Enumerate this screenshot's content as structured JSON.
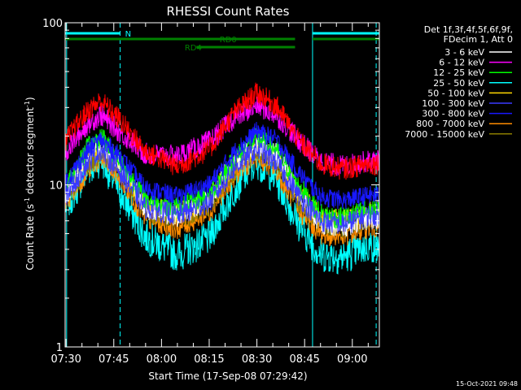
{
  "chart_data": {
    "type": "line",
    "title": "RHESSI Count Rates",
    "xlabel": "Start Time (17-Sep-08 07:29:42)",
    "ylabel": "Count Rate (s",
    "ylabel_sup1": "-1",
    "ylabel_mid": " detector segment",
    "ylabel_sup2": "-1",
    "ylabel_end": ")",
    "yscale": "log",
    "ylim": [
      1,
      100
    ],
    "xlim": [
      "07:29:42",
      "09:08:30"
    ],
    "x_ticks": [
      "07:30",
      "07:45",
      "08:00",
      "08:15",
      "08:30",
      "08:45",
      "09:00"
    ],
    "y_ticks": [
      "1",
      "10",
      "100"
    ],
    "grid": false,
    "legend_position": "right",
    "legend_header": [
      "Det 1f,3f,4f,5f,6f,9f,",
      "FDecim 1, Att 0"
    ],
    "timestamp": "15-Oct-2021 09:48",
    "series": [
      {
        "name": "3 - 6 keV",
        "color": "#ffffff",
        "x": [
          "07:30",
          "07:37",
          "07:41",
          "07:47",
          "07:55",
          "08:05",
          "08:15",
          "08:23",
          "08:30",
          "08:36",
          "08:43",
          "08:50",
          "08:57",
          "09:05"
        ],
        "values": [
          8.5,
          15.5,
          18.5,
          13.5,
          7.2,
          6.4,
          8.2,
          14.0,
          18.0,
          15.5,
          9.0,
          5.8,
          5.5,
          6.2
        ]
      },
      {
        "name": "6 - 12 keV",
        "color": "#ff00ff",
        "x": [
          "07:30",
          "07:37",
          "07:41",
          "07:47",
          "07:55",
          "08:05",
          "08:15",
          "08:23",
          "08:30",
          "08:36",
          "08:43",
          "08:50",
          "08:57",
          "09:05"
        ],
        "values": [
          16,
          24,
          27,
          21,
          15.5,
          15,
          18.5,
          26,
          31,
          27,
          19,
          14,
          13,
          14
        ]
      },
      {
        "name": "12 - 25 keV",
        "color": "#00ff00",
        "x": [
          "07:30",
          "07:37",
          "07:41",
          "07:47",
          "07:55",
          "08:05",
          "08:15",
          "08:23",
          "08:30",
          "08:36",
          "08:43",
          "08:50",
          "08:57",
          "09:05"
        ],
        "values": [
          10,
          17,
          20,
          14,
          8.2,
          7.2,
          8.8,
          14.5,
          19.5,
          16.5,
          10,
          6.6,
          6.2,
          7.0
        ]
      },
      {
        "name": "25 - 50 keV",
        "color": "#00ffff",
        "x": [
          "07:30",
          "07:37",
          "07:41",
          "07:47",
          "07:55",
          "08:05",
          "08:15",
          "08:23",
          "08:30",
          "08:36",
          "08:43",
          "08:50",
          "08:57",
          "09:05"
        ],
        "values": [
          7.5,
          12.5,
          14.5,
          9.0,
          4.8,
          3.7,
          4.7,
          9.5,
          14.0,
          11.0,
          5.8,
          3.7,
          3.6,
          4.2
        ]
      },
      {
        "name": "50 - 100 keV",
        "color": "#ffd700",
        "x": [
          "07:30",
          "07:37",
          "07:41",
          "07:47",
          "07:55",
          "08:05",
          "08:15",
          "08:23",
          "08:30",
          "08:36",
          "08:43",
          "08:50",
          "08:57",
          "09:05"
        ],
        "values": [
          9,
          15,
          17.5,
          13,
          7.5,
          6.8,
          8.2,
          13.5,
          17.5,
          15,
          9.2,
          6.3,
          6.0,
          6.8
        ]
      },
      {
        "name": "100 - 300 keV",
        "color": "#3a3aff",
        "x": [
          "07:30",
          "07:37",
          "07:41",
          "07:47",
          "07:55",
          "08:05",
          "08:15",
          "08:23",
          "08:30",
          "08:36",
          "08:43",
          "08:50",
          "08:57",
          "09:05"
        ],
        "values": [
          8.6,
          14,
          16.5,
          12,
          7.2,
          6.5,
          7.8,
          12.8,
          16.5,
          14,
          8.6,
          6.0,
          5.7,
          6.5
        ]
      },
      {
        "name": "300 - 800 keV",
        "color": "#1818ff",
        "x": [
          "07:30",
          "07:37",
          "07:41",
          "07:47",
          "07:55",
          "08:05",
          "08:15",
          "08:23",
          "08:30",
          "08:36",
          "08:43",
          "08:50",
          "08:57",
          "09:05"
        ],
        "values": [
          10.5,
          16.5,
          19,
          15,
          9.5,
          8.5,
          10,
          16,
          21.5,
          19,
          12,
          8.5,
          8.0,
          8.6
        ]
      },
      {
        "name": "800 - 7000 keV",
        "color": "#ff8c00",
        "x": [
          "07:30",
          "07:37",
          "07:41",
          "07:47",
          "07:55",
          "08:05",
          "08:15",
          "08:23",
          "08:30",
          "08:36",
          "08:43",
          "08:50",
          "08:57",
          "09:05"
        ],
        "values": [
          7.8,
          12.5,
          14.5,
          11,
          6.2,
          5.4,
          6.8,
          11.5,
          15.0,
          12.5,
          7.0,
          5.0,
          4.8,
          5.5
        ]
      },
      {
        "name": "7000 - 15000 keV",
        "color": "#8b7d00",
        "x": [
          "07:30",
          "07:37",
          "07:41",
          "07:47",
          "07:55",
          "08:05",
          "08:15",
          "08:23",
          "08:30",
          "08:36",
          "08:43",
          "08:50",
          "08:57",
          "09:05"
        ],
        "values": [
          8.2,
          13.5,
          16,
          12,
          7.0,
          6.0,
          7.5,
          12.5,
          16.5,
          14,
          8.0,
          5.6,
          5.4,
          6.2
        ]
      },
      {
        "name": "",
        "color": "#ff0000",
        "x": [
          "07:30",
          "07:37",
          "07:41",
          "07:47",
          "07:55",
          "08:05",
          "08:15",
          "08:23",
          "08:30",
          "08:36",
          "08:43",
          "08:50",
          "08:57",
          "09:05"
        ],
        "values": [
          19,
          29,
          33,
          25,
          16,
          13,
          16.5,
          28,
          37,
          31,
          19,
          13.5,
          12.5,
          13.5
        ]
      }
    ],
    "attenuator_bars": [
      {
        "label": "N",
        "color": "#00ffff",
        "segments": [
          [
            "07:29:42",
            "07:47:00"
          ],
          [
            "08:47:30",
            "09:08:30"
          ]
        ],
        "label_at": "07:47:15"
      },
      {
        "label": "RD0",
        "color": "#008000",
        "segments": [
          [
            "07:29:42",
            "08:42:00"
          ],
          [
            "08:47:30",
            "09:08:30"
          ]
        ],
        "label_at": "08:17:00"
      },
      {
        "label": "RD4",
        "color": "#008000",
        "segments": [
          [
            "08:11:00",
            "08:42:00"
          ]
        ],
        "label_at": "08:06:00"
      }
    ],
    "vertical_markers": [
      {
        "time": "07:30:10",
        "style": "solid",
        "color": "#00ffff"
      },
      {
        "time": "07:47:00",
        "style": "dashed",
        "color": "#00ffff"
      },
      {
        "time": "08:47:30",
        "style": "solid",
        "color": "#00ffff"
      },
      {
        "time": "09:07:30",
        "style": "dashed",
        "color": "#00ffff"
      }
    ]
  }
}
